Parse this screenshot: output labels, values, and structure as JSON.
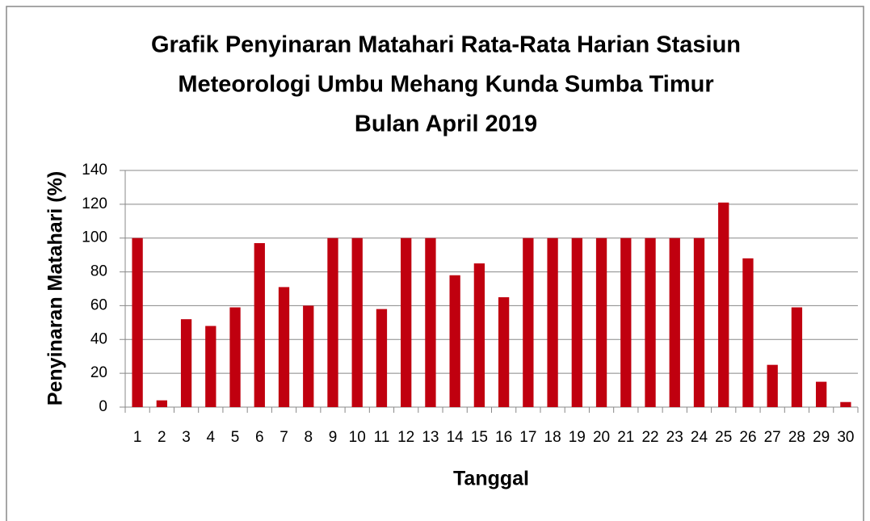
{
  "chart_data": {
    "type": "bar",
    "title": [
      "Grafik Penyinaran Matahari Rata-Rata Harian Stasiun",
      "Meteorologi Umbu Mehang Kunda Sumba Timur",
      "Bulan April 2019"
    ],
    "x_label": "Tanggal",
    "y_label": "Penyinaran Matahari (%)",
    "categories": [
      "1",
      "2",
      "3",
      "4",
      "5",
      "6",
      "7",
      "8",
      "9",
      "10",
      "11",
      "12",
      "13",
      "14",
      "15",
      "16",
      "17",
      "18",
      "19",
      "20",
      "21",
      "22",
      "23",
      "24",
      "25",
      "26",
      "27",
      "28",
      "29",
      "30"
    ],
    "values": [
      100,
      4,
      52,
      48,
      59,
      97,
      71,
      60,
      100,
      100,
      58,
      100,
      100,
      78,
      85,
      65,
      100,
      100,
      100,
      100,
      100,
      100,
      100,
      100,
      121,
      88,
      25,
      59,
      15,
      3
    ],
    "color": "#c0000f",
    "ylim": [
      0,
      140
    ],
    "yticks": [
      0,
      20,
      40,
      60,
      80,
      100,
      120,
      140
    ],
    "grid": true
  }
}
